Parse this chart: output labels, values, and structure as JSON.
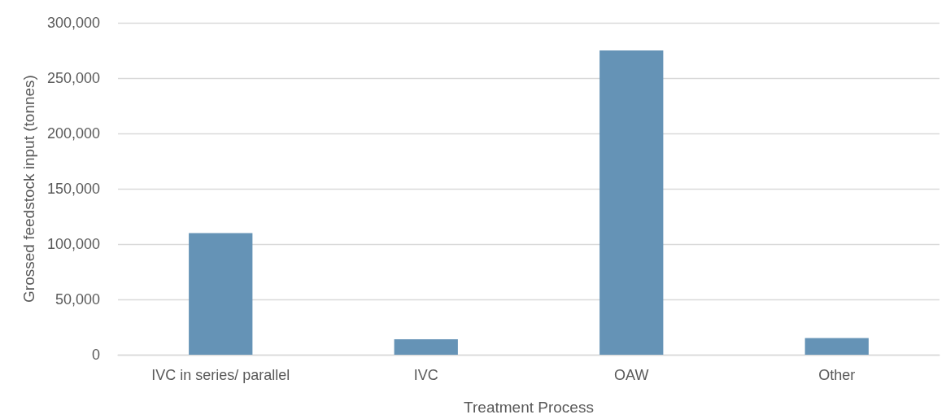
{
  "chart_data": {
    "type": "bar",
    "xlabel": "Treatment Process",
    "ylabel": "Grossed feedstock input (tonnes)",
    "categories": [
      "IVC in series/ parallel",
      "IVC",
      "OAW",
      "Other"
    ],
    "values": [
      110000,
      14000,
      275000,
      15000
    ],
    "color": "#6593b6",
    "ylim": [
      0,
      300000
    ],
    "yticks": [
      0,
      {
        "value": 50000,
        "label": "50,000"
      },
      {
        "value": 100000,
        "label": "100,000"
      },
      {
        "value": 150000,
        "label": "150,000"
      },
      {
        "value": 200000,
        "label": "200,000"
      },
      {
        "value": 250000,
        "label": "250,000"
      },
      {
        "value": 300000,
        "label": "300,000"
      }
    ],
    "grid": "y"
  }
}
